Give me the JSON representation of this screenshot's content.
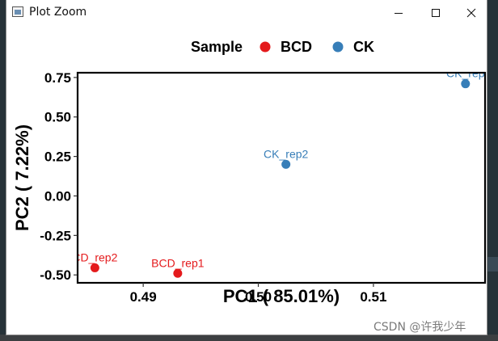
{
  "window": {
    "title": "Plot Zoom",
    "minimize_icon": "minimize-icon",
    "maximize_icon": "maximize-icon",
    "close_icon": "close-icon"
  },
  "legend": {
    "title": "Sample",
    "items": [
      {
        "label": "BCD",
        "color": "#e41a1c"
      },
      {
        "label": "CK",
        "color": "#377eb8"
      }
    ]
  },
  "chart_data": {
    "type": "scatter",
    "xlabel": "PC1 ( 85.01%)",
    "ylabel": "PC2 ( 7.22%)",
    "xlim": [
      0.4843,
      0.5197
    ],
    "ylim": [
      -0.55,
      0.78
    ],
    "x_ticks": [
      0.49,
      0.5,
      0.51
    ],
    "x_tick_labels": [
      "0.49",
      "0.50",
      "0.51"
    ],
    "y_ticks": [
      0.75,
      0.5,
      0.25,
      0.0,
      -0.25,
      -0.5
    ],
    "y_tick_labels": [
      "0.75",
      "0.50",
      "0.25",
      "0.00",
      "-0.25",
      "-0.50"
    ],
    "grid": false,
    "legend_position": "top",
    "series": [
      {
        "name": "BCD",
        "color": "#e41a1c",
        "points": [
          {
            "x": 0.4858,
            "y": -0.455,
            "label": "CD_rep2"
          },
          {
            "x": 0.493,
            "y": -0.49,
            "label": "BCD_rep1"
          }
        ]
      },
      {
        "name": "CK",
        "color": "#377eb8",
        "points": [
          {
            "x": 0.5024,
            "y": 0.2,
            "label": "CK_rep2"
          },
          {
            "x": 0.518,
            "y": 0.71,
            "label": "CK_rep"
          }
        ]
      }
    ]
  },
  "watermark": "CSDN @许我少年"
}
